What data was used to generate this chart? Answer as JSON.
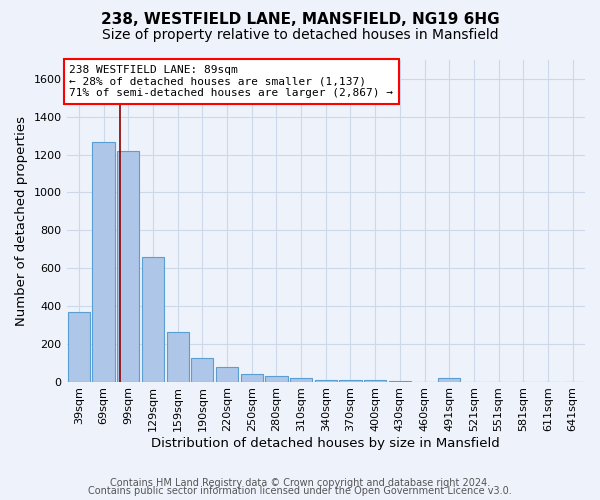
{
  "title_line1": "238, WESTFIELD LANE, MANSFIELD, NG19 6HG",
  "title_line2": "Size of property relative to detached houses in Mansfield",
  "xlabel": "Distribution of detached houses by size in Mansfield",
  "ylabel": "Number of detached properties",
  "footer_line1": "Contains HM Land Registry data © Crown copyright and database right 2024.",
  "footer_line2": "Contains public sector information licensed under the Open Government Licence v3.0.",
  "annotation_line1": "238 WESTFIELD LANE: 89sqm",
  "annotation_line2": "← 28% of detached houses are smaller (1,137)",
  "annotation_line3": "71% of semi-detached houses are larger (2,867) →",
  "bar_categories": [
    "39sqm",
    "69sqm",
    "99sqm",
    "129sqm",
    "159sqm",
    "190sqm",
    "220sqm",
    "250sqm",
    "280sqm",
    "310sqm",
    "340sqm",
    "370sqm",
    "400sqm",
    "430sqm",
    "460sqm",
    "491sqm",
    "521sqm",
    "551sqm",
    "581sqm",
    "611sqm",
    "641sqm"
  ],
  "bar_values": [
    370,
    1265,
    1220,
    660,
    260,
    125,
    75,
    40,
    28,
    18,
    10,
    8,
    6,
    5,
    0,
    18,
    0,
    0,
    0,
    0,
    0
  ],
  "bar_color": "#aec6e8",
  "bar_edge_color": "#5a9fd4",
  "red_line_x": 1.67,
  "ylim": [
    0,
    1700
  ],
  "yticks": [
    0,
    200,
    400,
    600,
    800,
    1000,
    1200,
    1400,
    1600
  ],
  "grid_color": "#cdd8ea",
  "background_color": "#eef2fa",
  "annotation_box_facecolor": "white",
  "annotation_box_edgecolor": "red",
  "title_fontsize": 11,
  "subtitle_fontsize": 10,
  "axis_label_fontsize": 9.5,
  "tick_fontsize": 8,
  "annotation_fontsize": 8,
  "footer_fontsize": 7
}
